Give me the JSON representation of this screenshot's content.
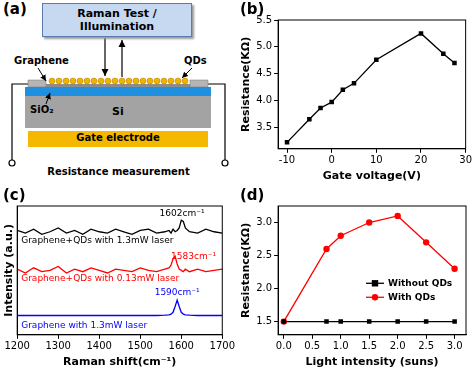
{
  "diagram": {
    "title": "(a)",
    "box": "Raman Test / Illumination",
    "labels": {
      "graphene": "Graphene",
      "qds": "QDs",
      "sio2": "SiO₂",
      "si": "Si",
      "gate": "Gate electrode",
      "measurement": "Resistance measurement"
    }
  },
  "chart_data": [
    {
      "type": "line",
      "title": "(b)",
      "x_label": "Gate voltage(V)",
      "y_label": "Resistance(KΩ)",
      "x": [
        -10,
        -5,
        -2.5,
        0,
        2.5,
        5,
        10,
        20,
        25,
        27.5
      ],
      "values": [
        3.22,
        3.65,
        3.86,
        3.97,
        4.2,
        4.32,
        4.76,
        5.25,
        4.87,
        4.7
      ],
      "color": "#000000",
      "marker": "square",
      "xlim": [
        -12,
        30
      ],
      "xticks": [
        -10,
        0,
        10,
        20,
        30
      ],
      "ylim": [
        3.1,
        5.5
      ],
      "yticks": [
        3.5,
        {
          "value": 4,
          "label": "4.0"
        },
        4.5,
        {
          "value": 5,
          "label": "5.0"
        },
        5.5
      ],
      "grid": false
    },
    {
      "type": "line",
      "title": "(c)",
      "x_label": "Raman shift(cm⁻¹)",
      "y_label": "Intensity (a.u.)",
      "x": [
        1200,
        1220,
        1240,
        1260,
        1280,
        1300,
        1320,
        1340,
        1360,
        1380,
        1400,
        1420,
        1440,
        1460,
        1480,
        1500,
        1520,
        1540,
        1560,
        1570,
        1575,
        1580,
        1585,
        1590,
        1595,
        1600,
        1605,
        1610,
        1620,
        1640,
        1660,
        1680,
        1700
      ],
      "series": [
        {
          "name": "Graphene+QDs with 1.3mW laser",
          "color": "#000000",
          "values": [
            8.1,
            7.9,
            8.2,
            7.8,
            8.0,
            8.3,
            7.9,
            8.1,
            7.8,
            8.2,
            8.0,
            7.9,
            8.2,
            8.0,
            7.8,
            8.1,
            8.2,
            7.9,
            8.0,
            8.1,
            7.9,
            8.2,
            8.0,
            8.1,
            8.3,
            8.9,
            8.8,
            8.3,
            8.0,
            7.9,
            8.2,
            8.0,
            7.9
          ]
        },
        {
          "name": "Graphene+QDs with 0.13mW laser",
          "color": "#ff0000",
          "values": [
            5.1,
            4.8,
            5.2,
            4.9,
            5.0,
            5.3,
            4.8,
            5.1,
            4.9,
            5.2,
            5.0,
            4.8,
            5.1,
            5.0,
            4.9,
            5.2,
            5.0,
            4.9,
            5.1,
            5.2,
            5.4,
            5.9,
            6.1,
            5.5,
            5.1,
            5.0,
            4.9,
            5.1,
            4.9,
            5.1,
            4.9,
            5.0,
            5.1
          ]
        },
        {
          "name": "Graphene with 1.3mW laser",
          "color": "#0000ff",
          "values": [
            1.5,
            1.5,
            1.5,
            1.5,
            1.5,
            1.5,
            1.5,
            1.5,
            1.5,
            1.5,
            1.5,
            1.5,
            1.5,
            1.5,
            1.5,
            1.5,
            1.5,
            1.5,
            1.52,
            1.55,
            1.6,
            1.75,
            2.2,
            2.7,
            2.2,
            1.75,
            1.6,
            1.55,
            1.52,
            1.5,
            1.5,
            1.5,
            1.5
          ]
        }
      ],
      "annotations": [
        {
          "text": "1602cm⁻¹",
          "x": 1602,
          "y": 9.4,
          "color": "#000000"
        },
        {
          "text": "1583cm⁻¹",
          "x": 1630,
          "y": 6.1,
          "color": "#ff0000"
        },
        {
          "text": "1590cm⁻¹",
          "x": 1590,
          "y": 3.3,
          "color": "#0000ff"
        }
      ],
      "xlim": [
        1200,
        1700
      ],
      "xticks": [
        1200,
        1300,
        1400,
        1500,
        1600,
        1700
      ],
      "ylim": [
        0,
        10
      ],
      "tick_labels": "x",
      "grid": false
    },
    {
      "type": "line",
      "title": "(d)",
      "x_label": "Light intensity (suns)",
      "y_label": "Resistance(KΩ)",
      "x": [
        0,
        0.75,
        1,
        1.5,
        2,
        2.5,
        3
      ],
      "series": [
        {
          "name": "Without QDs",
          "color": "#000000",
          "marker": "square",
          "values": [
            1.5,
            1.5,
            1.5,
            1.5,
            1.5,
            1.5,
            1.5
          ]
        },
        {
          "name": "With QDs",
          "color": "#ff0000",
          "marker": "circle",
          "values": [
            1.5,
            2.6,
            2.8,
            3.0,
            3.1,
            2.7,
            2.3
          ]
        }
      ],
      "xlim": [
        -0.1,
        3.2
      ],
      "xticks": [
        {
          "value": 0,
          "label": "0.0"
        },
        0.5,
        {
          "value": 1,
          "label": "1.0"
        },
        1.5,
        {
          "value": 2,
          "label": "2.0"
        },
        2.5,
        {
          "value": 3,
          "label": "3.0"
        }
      ],
      "ylim": [
        1.3,
        3.25
      ],
      "yticks": [
        1.5,
        {
          "value": 2,
          "label": "2.0"
        },
        2.5,
        {
          "value": 3,
          "label": "3.0"
        }
      ],
      "legend": "right",
      "grid": false
    }
  ]
}
